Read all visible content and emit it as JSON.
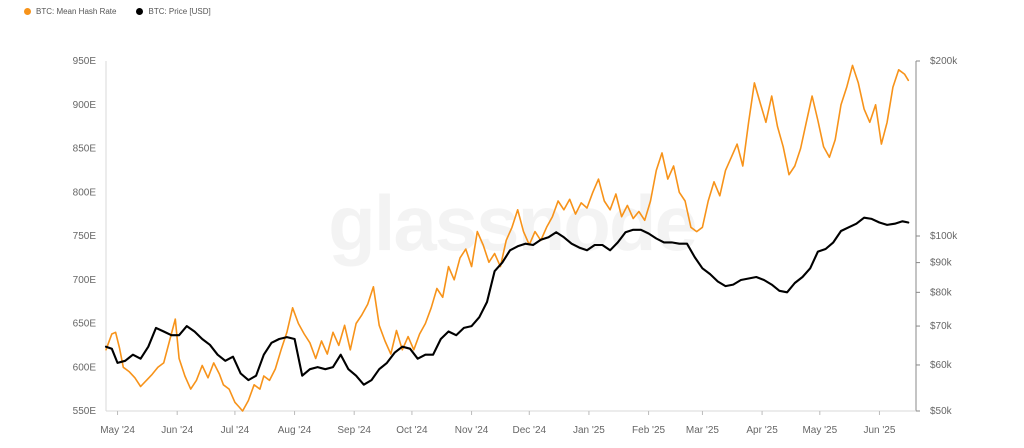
{
  "legend": {
    "hash_label": "BTC: Mean Hash Rate",
    "price_label": "BTC: Price [USD]"
  },
  "watermark": "glassnode",
  "colors": {
    "hash": "#f7931a",
    "price": "#000000"
  },
  "chart_data": {
    "type": "line",
    "title": "",
    "x": {
      "ticks": [
        "May '24",
        "Jun '24",
        "Jul '24",
        "Aug '24",
        "Sep '24",
        "Oct '24",
        "Nov '24",
        "Dec '24",
        "Jan '25",
        "Feb '25",
        "Mar '25",
        "Apr '25",
        "May '25",
        "Jun '25"
      ],
      "range": [
        "2024-04-25",
        "2025-06-20"
      ]
    },
    "y_left": {
      "ticks": [
        "550E",
        "600E",
        "650E",
        "700E",
        "750E",
        "800E",
        "850E",
        "900E",
        "950E"
      ],
      "range": [
        550,
        950
      ],
      "unit": "EH/s"
    },
    "y_right": {
      "scale": "log",
      "ticks": [
        {
          "label": "$50k",
          "value": 50000
        },
        {
          "label": "$60k",
          "value": 60000
        },
        {
          "label": "$70k",
          "value": 70000
        },
        {
          "label": "$80k",
          "value": 80000
        },
        {
          "label": "$90k",
          "value": 90000
        },
        {
          "label": "$100k",
          "value": 100000
        },
        {
          "label": "$200k",
          "value": 200000
        }
      ],
      "range": [
        50000,
        200000
      ]
    },
    "legend_position": "top-left",
    "grid": false,
    "series": [
      {
        "name": "BTC: Mean Hash Rate",
        "axis": "left",
        "points": [
          [
            "2024-04-25",
            620
          ],
          [
            "2024-04-28",
            638
          ],
          [
            "2024-04-30",
            640
          ],
          [
            "2024-05-02",
            622
          ],
          [
            "2024-05-04",
            600
          ],
          [
            "2024-05-07",
            595
          ],
          [
            "2024-05-10",
            588
          ],
          [
            "2024-05-13",
            578
          ],
          [
            "2024-05-16",
            585
          ],
          [
            "2024-05-19",
            592
          ],
          [
            "2024-05-22",
            600
          ],
          [
            "2024-05-25",
            605
          ],
          [
            "2024-05-28",
            630
          ],
          [
            "2024-05-31",
            655
          ],
          [
            "2024-06-02",
            610
          ],
          [
            "2024-06-05",
            590
          ],
          [
            "2024-06-08",
            575
          ],
          [
            "2024-06-11",
            585
          ],
          [
            "2024-06-14",
            602
          ],
          [
            "2024-06-17",
            588
          ],
          [
            "2024-06-20",
            605
          ],
          [
            "2024-06-23",
            592
          ],
          [
            "2024-06-25",
            580
          ],
          [
            "2024-06-28",
            575
          ],
          [
            "2024-07-01",
            560
          ],
          [
            "2024-07-03",
            555
          ],
          [
            "2024-07-05",
            550
          ],
          [
            "2024-07-08",
            562
          ],
          [
            "2024-07-11",
            580
          ],
          [
            "2024-07-14",
            575
          ],
          [
            "2024-07-16",
            590
          ],
          [
            "2024-07-19",
            585
          ],
          [
            "2024-07-22",
            598
          ],
          [
            "2024-07-25",
            620
          ],
          [
            "2024-07-28",
            640
          ],
          [
            "2024-07-31",
            668
          ],
          [
            "2024-08-03",
            650
          ],
          [
            "2024-08-06",
            638
          ],
          [
            "2024-08-09",
            628
          ],
          [
            "2024-08-12",
            610
          ],
          [
            "2024-08-15",
            630
          ],
          [
            "2024-08-18",
            615
          ],
          [
            "2024-08-21",
            640
          ],
          [
            "2024-08-24",
            625
          ],
          [
            "2024-08-27",
            648
          ],
          [
            "2024-08-30",
            620
          ],
          [
            "2024-09-02",
            650
          ],
          [
            "2024-09-05",
            660
          ],
          [
            "2024-09-08",
            672
          ],
          [
            "2024-09-11",
            692
          ],
          [
            "2024-09-14",
            648
          ],
          [
            "2024-09-17",
            630
          ],
          [
            "2024-09-20",
            615
          ],
          [
            "2024-09-23",
            642
          ],
          [
            "2024-09-26",
            620
          ],
          [
            "2024-09-29",
            635
          ],
          [
            "2024-10-02",
            620
          ],
          [
            "2024-10-05",
            638
          ],
          [
            "2024-10-08",
            650
          ],
          [
            "2024-10-11",
            668
          ],
          [
            "2024-10-14",
            690
          ],
          [
            "2024-10-17",
            680
          ],
          [
            "2024-10-20",
            715
          ],
          [
            "2024-10-23",
            700
          ],
          [
            "2024-10-26",
            725
          ],
          [
            "2024-10-29",
            735
          ],
          [
            "2024-11-01",
            715
          ],
          [
            "2024-11-04",
            755
          ],
          [
            "2024-11-07",
            740
          ],
          [
            "2024-11-10",
            720
          ],
          [
            "2024-11-13",
            730
          ],
          [
            "2024-11-16",
            715
          ],
          [
            "2024-11-19",
            745
          ],
          [
            "2024-11-22",
            760
          ],
          [
            "2024-11-25",
            780
          ],
          [
            "2024-11-28",
            755
          ],
          [
            "2024-12-01",
            740
          ],
          [
            "2024-12-04",
            755
          ],
          [
            "2024-12-07",
            745
          ],
          [
            "2024-12-10",
            760
          ],
          [
            "2024-12-13",
            772
          ],
          [
            "2024-12-16",
            790
          ],
          [
            "2024-12-19",
            780
          ],
          [
            "2024-12-22",
            792
          ],
          [
            "2024-12-25",
            775
          ],
          [
            "2024-12-28",
            788
          ],
          [
            "2024-12-31",
            782
          ],
          [
            "2025-01-03",
            800
          ],
          [
            "2025-01-06",
            815
          ],
          [
            "2025-01-09",
            790
          ],
          [
            "2025-01-12",
            780
          ],
          [
            "2025-01-15",
            798
          ],
          [
            "2025-01-18",
            772
          ],
          [
            "2025-01-21",
            785
          ],
          [
            "2025-01-24",
            770
          ],
          [
            "2025-01-27",
            778
          ],
          [
            "2025-01-30",
            768
          ],
          [
            "2025-02-02",
            790
          ],
          [
            "2025-02-05",
            825
          ],
          [
            "2025-02-08",
            845
          ],
          [
            "2025-02-11",
            815
          ],
          [
            "2025-02-14",
            830
          ],
          [
            "2025-02-17",
            800
          ],
          [
            "2025-02-20",
            790
          ],
          [
            "2025-02-23",
            760
          ],
          [
            "2025-02-26",
            755
          ],
          [
            "2025-03-01",
            760
          ],
          [
            "2025-03-04",
            790
          ],
          [
            "2025-03-07",
            812
          ],
          [
            "2025-03-10",
            796
          ],
          [
            "2025-03-13",
            825
          ],
          [
            "2025-03-16",
            840
          ],
          [
            "2025-03-19",
            855
          ],
          [
            "2025-03-22",
            830
          ],
          [
            "2025-03-25",
            880
          ],
          [
            "2025-03-28",
            925
          ],
          [
            "2025-03-31",
            902
          ],
          [
            "2025-04-03",
            880
          ],
          [
            "2025-04-06",
            910
          ],
          [
            "2025-04-09",
            875
          ],
          [
            "2025-04-12",
            852
          ],
          [
            "2025-04-15",
            820
          ],
          [
            "2025-04-18",
            830
          ],
          [
            "2025-04-21",
            850
          ],
          [
            "2025-04-24",
            880
          ],
          [
            "2025-04-27",
            910
          ],
          [
            "2025-04-30",
            882
          ],
          [
            "2025-05-03",
            852
          ],
          [
            "2025-05-06",
            840
          ],
          [
            "2025-05-09",
            860
          ],
          [
            "2025-05-12",
            900
          ],
          [
            "2025-05-15",
            920
          ],
          [
            "2025-05-18",
            945
          ],
          [
            "2025-05-21",
            925
          ],
          [
            "2025-05-24",
            895
          ],
          [
            "2025-05-27",
            880
          ],
          [
            "2025-05-30",
            900
          ],
          [
            "2025-06-02",
            855
          ],
          [
            "2025-06-05",
            880
          ],
          [
            "2025-06-08",
            920
          ],
          [
            "2025-06-11",
            940
          ],
          [
            "2025-06-14",
            935
          ],
          [
            "2025-06-16",
            928
          ]
        ]
      },
      {
        "name": "BTC: Price [USD]",
        "axis": "right",
        "points": [
          [
            "2024-04-25",
            64500
          ],
          [
            "2024-04-28",
            64000
          ],
          [
            "2024-05-01",
            60500
          ],
          [
            "2024-05-05",
            61000
          ],
          [
            "2024-05-09",
            62500
          ],
          [
            "2024-05-13",
            61500
          ],
          [
            "2024-05-17",
            64500
          ],
          [
            "2024-05-21",
            69500
          ],
          [
            "2024-05-25",
            68500
          ],
          [
            "2024-05-29",
            67500
          ],
          [
            "2024-06-02",
            67500
          ],
          [
            "2024-06-06",
            70000
          ],
          [
            "2024-06-10",
            68500
          ],
          [
            "2024-06-14",
            66500
          ],
          [
            "2024-06-18",
            65000
          ],
          [
            "2024-06-22",
            62500
          ],
          [
            "2024-06-26",
            61000
          ],
          [
            "2024-06-30",
            62000
          ],
          [
            "2024-07-04",
            58000
          ],
          [
            "2024-07-08",
            56500
          ],
          [
            "2024-07-12",
            57500
          ],
          [
            "2024-07-16",
            62500
          ],
          [
            "2024-07-20",
            65500
          ],
          [
            "2024-07-24",
            66500
          ],
          [
            "2024-07-28",
            67000
          ],
          [
            "2024-08-01",
            66500
          ],
          [
            "2024-08-05",
            57500
          ],
          [
            "2024-08-09",
            59000
          ],
          [
            "2024-08-13",
            59500
          ],
          [
            "2024-08-17",
            59000
          ],
          [
            "2024-08-21",
            59500
          ],
          [
            "2024-08-25",
            62500
          ],
          [
            "2024-08-29",
            59000
          ],
          [
            "2024-09-02",
            57500
          ],
          [
            "2024-09-06",
            55500
          ],
          [
            "2024-09-10",
            56500
          ],
          [
            "2024-09-14",
            59000
          ],
          [
            "2024-09-18",
            60500
          ],
          [
            "2024-09-22",
            63000
          ],
          [
            "2024-09-26",
            64500
          ],
          [
            "2024-09-30",
            64000
          ],
          [
            "2024-10-04",
            61500
          ],
          [
            "2024-10-08",
            62500
          ],
          [
            "2024-10-12",
            62500
          ],
          [
            "2024-10-16",
            66500
          ],
          [
            "2024-10-20",
            68500
          ],
          [
            "2024-10-24",
            67500
          ],
          [
            "2024-10-28",
            69500
          ],
          [
            "2024-11-01",
            70000
          ],
          [
            "2024-11-05",
            72500
          ],
          [
            "2024-11-09",
            77000
          ],
          [
            "2024-11-13",
            87000
          ],
          [
            "2024-11-17",
            90000
          ],
          [
            "2024-11-21",
            94500
          ],
          [
            "2024-11-25",
            96000
          ],
          [
            "2024-11-29",
            97000
          ],
          [
            "2024-12-03",
            96500
          ],
          [
            "2024-12-07",
            98500
          ],
          [
            "2024-12-11",
            99500
          ],
          [
            "2024-12-15",
            101500
          ],
          [
            "2024-12-19",
            99500
          ],
          [
            "2024-12-23",
            97000
          ],
          [
            "2024-12-27",
            95500
          ],
          [
            "2024-12-31",
            94500
          ],
          [
            "2025-01-04",
            96500
          ],
          [
            "2025-01-08",
            96500
          ],
          [
            "2025-01-12",
            94500
          ],
          [
            "2025-01-16",
            97500
          ],
          [
            "2025-01-20",
            101500
          ],
          [
            "2025-01-24",
            102500
          ],
          [
            "2025-01-28",
            102500
          ],
          [
            "2025-02-01",
            101000
          ],
          [
            "2025-02-05",
            99000
          ],
          [
            "2025-02-09",
            97500
          ],
          [
            "2025-02-13",
            97500
          ],
          [
            "2025-02-17",
            97000
          ],
          [
            "2025-02-21",
            97000
          ],
          [
            "2025-02-25",
            92000
          ],
          [
            "2025-03-01",
            88000
          ],
          [
            "2025-03-05",
            86000
          ],
          [
            "2025-03-09",
            83500
          ],
          [
            "2025-03-13",
            82000
          ],
          [
            "2025-03-17",
            82500
          ],
          [
            "2025-03-21",
            84000
          ],
          [
            "2025-03-25",
            84500
          ],
          [
            "2025-03-29",
            85000
          ],
          [
            "2025-04-02",
            84000
          ],
          [
            "2025-04-06",
            82500
          ],
          [
            "2025-04-10",
            80500
          ],
          [
            "2025-04-14",
            80000
          ],
          [
            "2025-04-18",
            83000
          ],
          [
            "2025-04-22",
            85000
          ],
          [
            "2025-04-26",
            88000
          ],
          [
            "2025-04-30",
            94000
          ],
          [
            "2025-05-04",
            95000
          ],
          [
            "2025-05-08",
            97500
          ],
          [
            "2025-05-12",
            102000
          ],
          [
            "2025-05-16",
            103500
          ],
          [
            "2025-05-20",
            105000
          ],
          [
            "2025-05-24",
            107500
          ],
          [
            "2025-05-28",
            107000
          ],
          [
            "2025-06-01",
            105500
          ],
          [
            "2025-06-05",
            104500
          ],
          [
            "2025-06-09",
            105000
          ],
          [
            "2025-06-13",
            106000
          ],
          [
            "2025-06-16",
            105500
          ]
        ]
      }
    ]
  }
}
